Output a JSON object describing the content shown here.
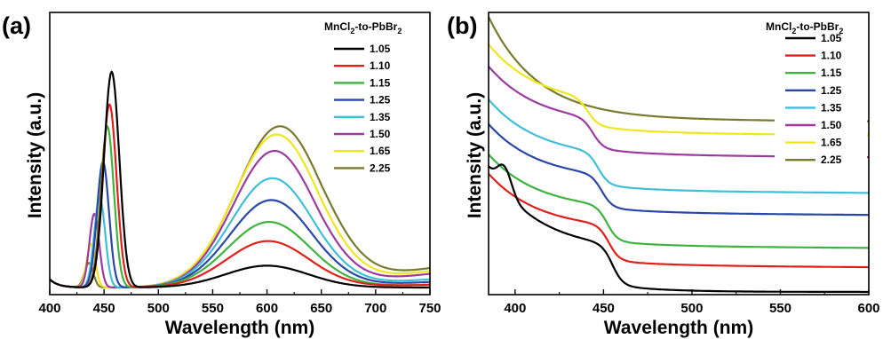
{
  "chart_data": [
    {
      "type": "line",
      "panel_label": "(a)",
      "xlabel": "Wavelength (nm)",
      "ylabel": "Intensity (a.u.)",
      "xlim": [
        400,
        750
      ],
      "xticks": [
        400,
        450,
        500,
        550,
        600,
        650,
        700,
        750
      ],
      "y_ticks_shown": false,
      "grid": false,
      "legend": {
        "title": "MnCl2-to-PbBr2",
        "title_main": "MnCl",
        "title_sub1": "2",
        "title_mid": "-to-PbBr",
        "title_sub2": "2",
        "placement": "top-right"
      },
      "series": [
        {
          "name": "1.05",
          "color": "#000000",
          "peak1_x": 457,
          "peak1_y": 0.79,
          "peak1_w": 7,
          "peak2_x": 600,
          "peak2_y": 0.08,
          "peak2_w": 38,
          "end_y": 0.0
        },
        {
          "name": "1.10",
          "color": "#e0201b",
          "peak1_x": 455,
          "peak1_y": 0.67,
          "peak1_w": 6.5,
          "peak2_x": 601,
          "peak2_y": 0.17,
          "peak2_w": 38,
          "end_y": 0.01
        },
        {
          "name": "1.15",
          "color": "#3fb23f",
          "peak1_x": 453,
          "peak1_y": 0.59,
          "peak1_w": 6,
          "peak2_x": 602,
          "peak2_y": 0.24,
          "peak2_w": 38,
          "end_y": 0.01
        },
        {
          "name": "1.25",
          "color": "#2a46a8",
          "peak1_x": 449,
          "peak1_y": 0.46,
          "peak1_w": 5.5,
          "peak2_x": 604,
          "peak2_y": 0.32,
          "peak2_w": 38,
          "end_y": 0.02
        },
        {
          "name": "1.35",
          "color": "#3fbfd6",
          "peak1_x": 446,
          "peak1_y": 0.33,
          "peak1_w": 5,
          "peak2_x": 605,
          "peak2_y": 0.4,
          "peak2_w": 38,
          "end_y": 0.03
        },
        {
          "name": "1.50",
          "color": "#9b3ba0",
          "peak1_x": 441,
          "peak1_y": 0.27,
          "peak1_w": 4.5,
          "peak2_x": 607,
          "peak2_y": 0.5,
          "peak2_w": 38,
          "end_y": 0.05
        },
        {
          "name": "1.65",
          "color": "#f0e61e",
          "peak1_x": 438,
          "peak1_y": 0.16,
          "peak1_w": 4,
          "peak2_x": 609,
          "peak2_y": 0.56,
          "peak2_w": 39,
          "end_y": 0.06
        },
        {
          "name": "2.25",
          "color": "#7a7a2e",
          "peak1_x": 436,
          "peak1_y": 0.09,
          "peak1_w": 4,
          "peak2_x": 612,
          "peak2_y": 0.59,
          "peak2_w": 40,
          "end_y": 0.07
        }
      ]
    },
    {
      "type": "line",
      "panel_label": "(b)",
      "xlabel": "Wavelength (nm)",
      "ylabel": "Intensity (a.u.)",
      "xlim": [
        385,
        600
      ],
      "xticks": [
        400,
        450,
        500,
        550,
        600
      ],
      "y_ticks_shown": false,
      "grid": false,
      "legend": {
        "title": "MnCl2-to-PbBr2",
        "title_main": "MnCl",
        "title_sub1": "2",
        "title_mid": "-to-PbBr",
        "title_sub2": "2",
        "placement": "top-right"
      },
      "series": [
        {
          "name": "1.05",
          "color": "#000000",
          "offset": 0.0,
          "step_x": 455,
          "step_h": 0.15,
          "start": 0.3,
          "tail": 0.0,
          "exciton": true
        },
        {
          "name": "1.10",
          "color": "#e0201b",
          "offset": 0.09,
          "step_x": 453,
          "step_h": 0.13,
          "start": 0.2,
          "tail": 0.01
        },
        {
          "name": "1.15",
          "color": "#3fb23f",
          "offset": 0.16,
          "step_x": 452,
          "step_h": 0.13,
          "start": 0.2,
          "tail": 0.01
        },
        {
          "name": "1.25",
          "color": "#2a46a8",
          "offset": 0.28,
          "step_x": 449,
          "step_h": 0.12,
          "start": 0.2,
          "tail": 0.01
        },
        {
          "name": "1.35",
          "color": "#3fbfd6",
          "offset": 0.36,
          "step_x": 447,
          "step_h": 0.12,
          "start": 0.21,
          "tail": 0.01
        },
        {
          "name": "1.50",
          "color": "#9b3ba0",
          "offset": 0.49,
          "step_x": 444,
          "step_h": 0.11,
          "start": 0.21,
          "tail": 0.01
        },
        {
          "name": "1.65",
          "color": "#f0e61e",
          "offset": 0.57,
          "step_x": 441,
          "step_h": 0.1,
          "start": 0.22,
          "tail": 0.01
        },
        {
          "name": "2.25",
          "color": "#7a7a2e",
          "offset": 0.62,
          "step_x": 0,
          "step_h": 0.0,
          "start": 0.37,
          "tail": 0.01
        }
      ]
    }
  ]
}
